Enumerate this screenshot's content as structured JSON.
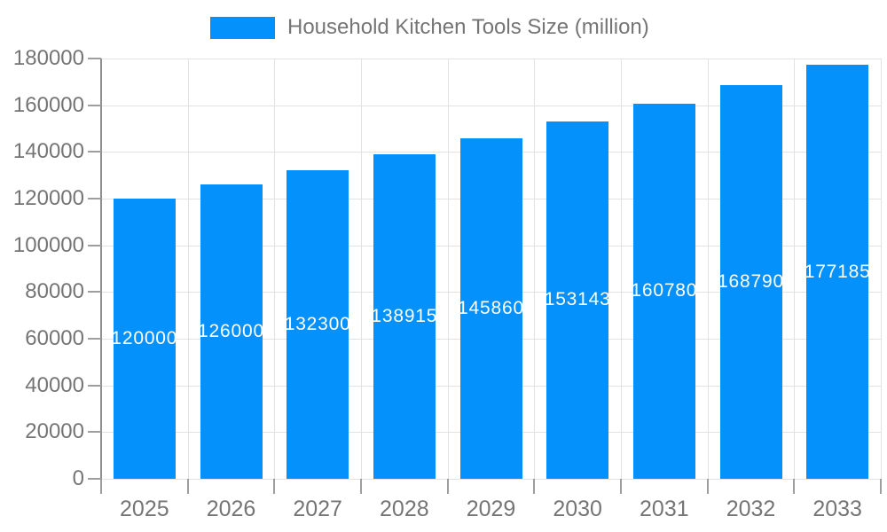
{
  "legend": {
    "label": "Household Kitchen Tools Size (million)"
  },
  "colors": {
    "bar": "#0591fb",
    "grid": "#e2e2e2",
    "axis": "#8f8f8f",
    "tick": "#9e9e9e",
    "axis_text": "#757575",
    "bar_label_text": "#ffffff",
    "background": "#ffffff"
  },
  "chart_data": {
    "type": "bar",
    "title": "",
    "legend_label": "Household Kitchen Tools Size (million)",
    "legend_position": "top",
    "categories": [
      "2025",
      "2026",
      "2027",
      "2028",
      "2029",
      "2030",
      "2031",
      "2032",
      "2033"
    ],
    "values": [
      120000,
      126000,
      132300,
      138915,
      145860,
      153143,
      160780,
      168790,
      177185
    ],
    "bar_labels": [
      "120000",
      "126000",
      "132300",
      "138915",
      "145860",
      "153143",
      "160780",
      "168790",
      "177185"
    ],
    "xlabel": "",
    "ylabel": "",
    "ylim": [
      0,
      180000
    ],
    "ytick_step": 20000,
    "yticks": [
      "0",
      "20000",
      "40000",
      "60000",
      "80000",
      "100000",
      "120000",
      "140000",
      "160000",
      "180000"
    ],
    "grid": true
  }
}
